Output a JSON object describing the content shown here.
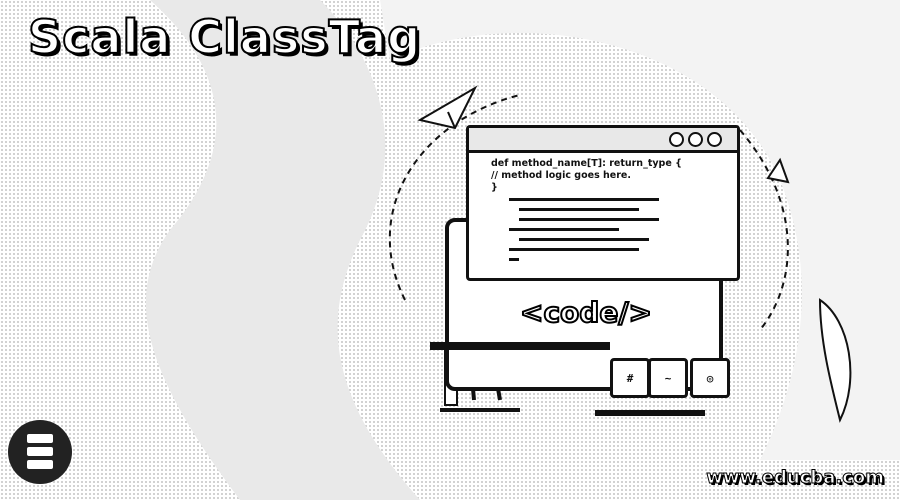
{
  "banner": {
    "title": "Scala ClassTag",
    "footer_url": "www.educba.com"
  },
  "code_window": {
    "lines": [
      "def method_name[T]: return_type {",
      "// method logic goes here.",
      "}"
    ],
    "tag_text": "<code/>"
  },
  "keys": [
    "#",
    "~",
    "◎"
  ],
  "colors": {
    "ink": "#111111",
    "paper": "#ffffff",
    "dither": "#c8c8c8"
  },
  "icons": [
    "scala-logo-icon",
    "paper-plane-icon",
    "browser-dots-icon"
  ]
}
